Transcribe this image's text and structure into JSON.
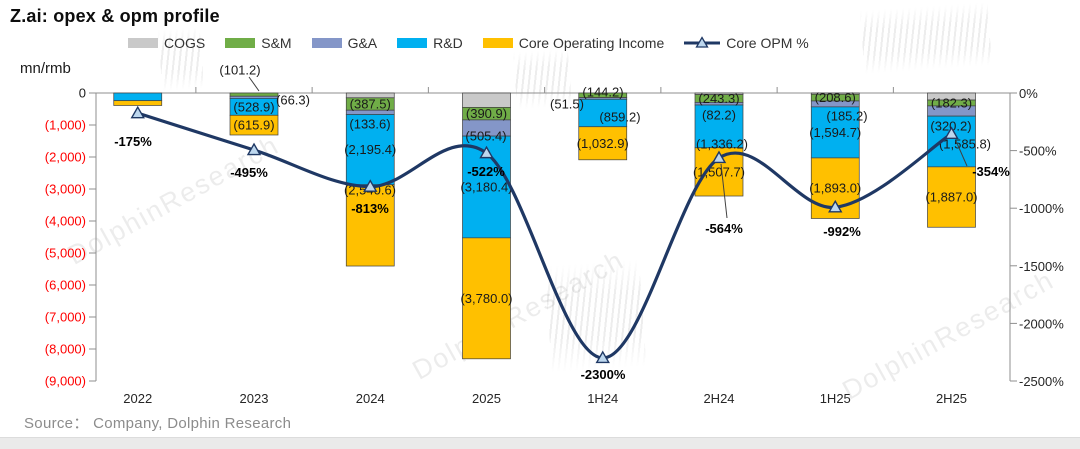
{
  "title": "Z.ai: opex & opm profile",
  "axis_unit": "mn/rmb",
  "source": "Source：  Company, Dolphin Research",
  "watermark_text": "DolphinResearch",
  "colors": {
    "cogs": "#C9C9C9",
    "sm": "#70AD47",
    "ga": "#8496C8",
    "rd": "#00B0F0",
    "coi": "#FFC000",
    "opm_line": "#1F3864",
    "marker_fill": "#BDD7EE",
    "negative_tick": "#FF0000",
    "axis_line": "#8f8f8f",
    "label_text": "#1a1a1a"
  },
  "chart_data": {
    "type": "bar",
    "stacked": true,
    "grid": false,
    "legend_position": "top",
    "categories": [
      "2022",
      "2023",
      "2024",
      "2025",
      "1H24",
      "2H24",
      "1H25",
      "2H25"
    ],
    "bar_series": [
      {
        "name": "COGS",
        "color": "cogs",
        "values": [
          0,
          0,
          -150,
          -450,
          0,
          -50,
          -40,
          -220
        ],
        "labels": [
          "",
          "",
          "",
          "",
          "",
          "",
          "",
          ""
        ]
      },
      {
        "name": "S&M",
        "color": "sm",
        "values": [
          0,
          -101.2,
          -387.5,
          -390.9,
          -144.2,
          -243.3,
          -208.6,
          -182.3
        ],
        "labels": [
          "",
          "(101.2)",
          "(387.5)",
          "(390.9)",
          "(144.2)",
          "(243.3)",
          "(208.6)",
          "(182.3)"
        ]
      },
      {
        "name": "G&A",
        "color": "ga",
        "values": [
          0,
          -66.3,
          -133.6,
          -505.4,
          -51.5,
          -82.2,
          -185.2,
          -320.2
        ],
        "labels": [
          "",
          "(66.3)",
          "(133.6)",
          "(505.4)",
          "(51.5)",
          "(82.2)",
          "(185.2)",
          "(320.2)"
        ]
      },
      {
        "name": "R&D",
        "color": "rd",
        "values": [
          -240,
          -528.9,
          -2195.4,
          -3180.4,
          -859.2,
          -1336.2,
          -1594.7,
          -1585.8
        ],
        "labels": [
          "",
          "(528.9)",
          "(2,195.4)",
          "(3,180.4)",
          "(859.2)",
          "(1,336.2)",
          "(1,594.7)",
          "(1,585.8)"
        ]
      },
      {
        "name": "Core Operating Income",
        "color": "coi",
        "values": [
          -150,
          -615.9,
          -2540.6,
          -3780.0,
          -1032.9,
          -1507.7,
          -1893.0,
          -1887.0
        ],
        "labels": [
          "",
          "(615.9)",
          "(2,540.6)",
          "(3,780.0)",
          "(1,032.9)",
          "(1,507.7)",
          "(1,893.0)",
          "(1,887.0)"
        ]
      }
    ],
    "line_series": {
      "name": "Core OPM %",
      "values": [
        -175,
        -495,
        -813,
        -522,
        -2300,
        -564,
        -992,
        -354
      ],
      "labels": [
        "-175%",
        "-495%",
        "-813%",
        "-522%",
        "-2300%",
        "-564%",
        "-992%",
        "-354%"
      ]
    },
    "left_axis": {
      "title": "mn/rmb",
      "min": 0,
      "max": -9000,
      "ticks": [
        "0",
        "(1,000)",
        "(2,000)",
        "(3,000)",
        "(4,000)",
        "(5,000)",
        "(6,000)",
        "(7,000)",
        "(8,000)",
        "(9,000)"
      ]
    },
    "right_axis": {
      "min": 0,
      "max": -2500,
      "ticks": [
        "0%",
        "-500%",
        "-1000%",
        "-1500%",
        "-2000%",
        "-2500%"
      ]
    }
  }
}
